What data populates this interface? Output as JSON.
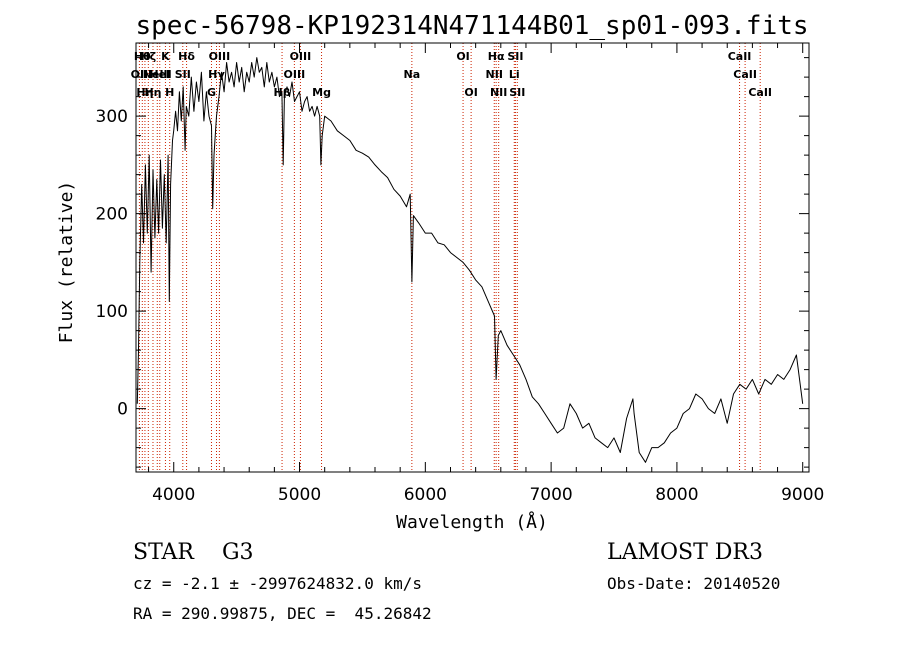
{
  "chart_data": {
    "type": "line",
    "title": "spec-56798-KP192314N471144B01_sp01-093.fits",
    "xlabel": "Wavelength (Å)",
    "ylabel": "Flux (relative)",
    "xlim": [
      3700,
      9050
    ],
    "ylim": [
      -65,
      375
    ],
    "xticks": [
      4000,
      5000,
      6000,
      7000,
      8000,
      9000
    ],
    "yticks": [
      0,
      100,
      200,
      300
    ],
    "grid": false,
    "series": [
      {
        "points": [
          [
            3710,
            5
          ],
          [
            3720,
            60
          ],
          [
            3730,
            150
          ],
          [
            3745,
            230
          ],
          [
            3760,
            170
          ],
          [
            3775,
            250
          ],
          [
            3790,
            180
          ],
          [
            3805,
            260
          ],
          [
            3820,
            140
          ],
          [
            3835,
            245
          ],
          [
            3850,
            175
          ],
          [
            3865,
            235
          ],
          [
            3880,
            180
          ],
          [
            3895,
            255
          ],
          [
            3910,
            185
          ],
          [
            3925,
            240
          ],
          [
            3940,
            170
          ],
          [
            3955,
            260
          ],
          [
            3965,
            110
          ],
          [
            3975,
            230
          ],
          [
            3990,
            275
          ],
          [
            4000,
            285
          ],
          [
            4015,
            305
          ],
          [
            4030,
            285
          ],
          [
            4045,
            325
          ],
          [
            4060,
            295
          ],
          [
            4075,
            330
          ],
          [
            4090,
            265
          ],
          [
            4100,
            310
          ],
          [
            4120,
            300
          ],
          [
            4140,
            340
          ],
          [
            4160,
            305
          ],
          [
            4180,
            335
          ],
          [
            4200,
            315
          ],
          [
            4220,
            345
          ],
          [
            4240,
            295
          ],
          [
            4260,
            325
          ],
          [
            4280,
            300
          ],
          [
            4300,
            290
          ],
          [
            4310,
            205
          ],
          [
            4320,
            260
          ],
          [
            4340,
            300
          ],
          [
            4360,
            320
          ],
          [
            4380,
            345
          ],
          [
            4400,
            325
          ],
          [
            4420,
            355
          ],
          [
            4440,
            335
          ],
          [
            4460,
            345
          ],
          [
            4480,
            330
          ],
          [
            4500,
            355
          ],
          [
            4520,
            335
          ],
          [
            4540,
            350
          ],
          [
            4560,
            325
          ],
          [
            4580,
            345
          ],
          [
            4600,
            335
          ],
          [
            4620,
            355
          ],
          [
            4640,
            340
          ],
          [
            4660,
            360
          ],
          [
            4680,
            345
          ],
          [
            4700,
            350
          ],
          [
            4720,
            330
          ],
          [
            4740,
            355
          ],
          [
            4760,
            335
          ],
          [
            4780,
            345
          ],
          [
            4800,
            330
          ],
          [
            4820,
            340
          ],
          [
            4840,
            320
          ],
          [
            4860,
            325
          ],
          [
            4870,
            250
          ],
          [
            4880,
            320
          ],
          [
            4900,
            330
          ],
          [
            4920,
            320
          ],
          [
            4940,
            335
          ],
          [
            4960,
            315
          ],
          [
            4980,
            320
          ],
          [
            5000,
            325
          ],
          [
            5020,
            305
          ],
          [
            5040,
            315
          ],
          [
            5060,
            320
          ],
          [
            5080,
            305
          ],
          [
            5100,
            310
          ],
          [
            5120,
            300
          ],
          [
            5140,
            310
          ],
          [
            5160,
            300
          ],
          [
            5170,
            250
          ],
          [
            5180,
            280
          ],
          [
            5200,
            300
          ],
          [
            5250,
            295
          ],
          [
            5300,
            285
          ],
          [
            5350,
            280
          ],
          [
            5400,
            275
          ],
          [
            5450,
            265
          ],
          [
            5500,
            262
          ],
          [
            5550,
            258
          ],
          [
            5600,
            250
          ],
          [
            5650,
            243
          ],
          [
            5700,
            237
          ],
          [
            5750,
            225
          ],
          [
            5800,
            218
          ],
          [
            5850,
            207
          ],
          [
            5880,
            220
          ],
          [
            5893,
            130
          ],
          [
            5905,
            198
          ],
          [
            5950,
            190
          ],
          [
            6000,
            180
          ],
          [
            6050,
            180
          ],
          [
            6100,
            170
          ],
          [
            6150,
            168
          ],
          [
            6200,
            160
          ],
          [
            6250,
            155
          ],
          [
            6300,
            150
          ],
          [
            6350,
            142
          ],
          [
            6400,
            132
          ],
          [
            6450,
            125
          ],
          [
            6500,
            110
          ],
          [
            6550,
            95
          ],
          [
            6563,
            30
          ],
          [
            6580,
            75
          ],
          [
            6600,
            80
          ],
          [
            6650,
            65
          ],
          [
            6700,
            55
          ],
          [
            6750,
            45
          ],
          [
            6800,
            30
          ],
          [
            6850,
            12
          ],
          [
            6900,
            5
          ],
          [
            6950,
            -5
          ],
          [
            7000,
            -15
          ],
          [
            7050,
            -25
          ],
          [
            7100,
            -20
          ],
          [
            7150,
            5
          ],
          [
            7200,
            -5
          ],
          [
            7250,
            -20
          ],
          [
            7300,
            -15
          ],
          [
            7350,
            -30
          ],
          [
            7400,
            -35
          ],
          [
            7450,
            -40
          ],
          [
            7500,
            -30
          ],
          [
            7550,
            -45
          ],
          [
            7600,
            -10
          ],
          [
            7650,
            10
          ],
          [
            7660,
            -5
          ],
          [
            7700,
            -45
          ],
          [
            7750,
            -55
          ],
          [
            7800,
            -40
          ],
          [
            7850,
            -40
          ],
          [
            7900,
            -35
          ],
          [
            7950,
            -25
          ],
          [
            8000,
            -20
          ],
          [
            8050,
            -5
          ],
          [
            8100,
            0
          ],
          [
            8150,
            15
          ],
          [
            8200,
            10
          ],
          [
            8250,
            0
          ],
          [
            8300,
            -5
          ],
          [
            8350,
            10
          ],
          [
            8400,
            -15
          ],
          [
            8450,
            15
          ],
          [
            8500,
            25
          ],
          [
            8550,
            20
          ],
          [
            8600,
            30
          ],
          [
            8650,
            15
          ],
          [
            8700,
            30
          ],
          [
            8750,
            25
          ],
          [
            8800,
            35
          ],
          [
            8850,
            30
          ],
          [
            8900,
            40
          ],
          [
            8950,
            55
          ],
          [
            9000,
            5
          ]
        ]
      }
    ],
    "lines": [
      {
        "wavelength": 3727,
        "label": "OII",
        "row": 1
      },
      {
        "wavelength": 3750,
        "label": "Hθ",
        "row": 0
      },
      {
        "wavelength": 3771,
        "label": "Hη",
        "row": 2
      },
      {
        "wavelength": 3798,
        "label": "Hζ",
        "row": 0
      },
      {
        "wavelength": 3835,
        "label": "Hη",
        "row": 2
      },
      {
        "wavelength": 3869,
        "label": "NeIII",
        "row": 1
      },
      {
        "wavelength": 3889,
        "label": "HeI",
        "row": 1
      },
      {
        "wavelength": 3934,
        "label": "K",
        "row": 0
      },
      {
        "wavelength": 3968,
        "label": "H",
        "row": 2
      },
      {
        "wavelength": 4072,
        "label": "SII",
        "row": 1
      },
      {
        "wavelength": 4102,
        "label": "Hδ",
        "row": 0
      },
      {
        "wavelength": 4300,
        "label": "G",
        "row": 2
      },
      {
        "wavelength": 4340,
        "label": "Hγ",
        "row": 1
      },
      {
        "wavelength": 4363,
        "label": "OIII",
        "row": 0
      },
      {
        "wavelength": 4861,
        "label": "Hβ",
        "row": 2
      },
      {
        "wavelength": 4959,
        "label": "OIII",
        "row": 1
      },
      {
        "wavelength": 5007,
        "label": "OIII",
        "row": 0
      },
      {
        "wavelength": 5175,
        "label": "Mg",
        "row": 2
      },
      {
        "wavelength": 5893,
        "label": "Na",
        "row": 1
      },
      {
        "wavelength": 6300,
        "label": "OI",
        "row": 0
      },
      {
        "wavelength": 6364,
        "label": "OI",
        "row": 2
      },
      {
        "wavelength": 6548,
        "label": "NII",
        "row": 1
      },
      {
        "wavelength": 6563,
        "label": "Hα",
        "row": 0
      },
      {
        "wavelength": 6583,
        "label": "NII",
        "row": 2
      },
      {
        "wavelength": 6707,
        "label": "Li",
        "row": 1
      },
      {
        "wavelength": 6716,
        "label": "SII",
        "row": 0
      },
      {
        "wavelength": 6731,
        "label": "SII",
        "row": 2
      },
      {
        "wavelength": 8498,
        "label": "CaII",
        "row": 0
      },
      {
        "wavelength": 8542,
        "label": "CaII",
        "row": 1
      },
      {
        "wavelength": 8662,
        "label": "CaII",
        "row": 2
      }
    ],
    "line_color": "#cc2200"
  },
  "info": {
    "object": "STAR    G3",
    "survey": "LAMOST DR3",
    "redshift": "cz = -2.1 ± -2997624832.0 km/s",
    "obs_date": "Obs-Date: 20140520",
    "coords": "RA = 290.99875, DEC =  45.26842"
  }
}
